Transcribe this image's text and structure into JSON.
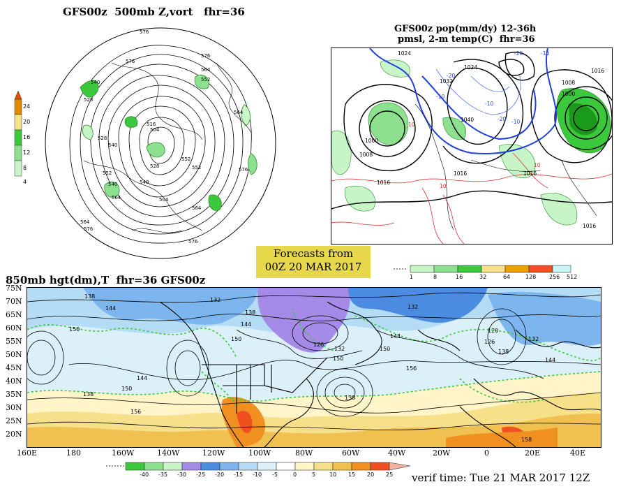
{
  "top_left": {
    "title": "GFS00z  500mb Z,vort   fhr=36",
    "colorbar": {
      "labels": [
        "24",
        "20",
        "16",
        "12",
        "8",
        "4"
      ],
      "colors": [
        "#e4ff00",
        "#f0a000",
        "#f7e08a",
        "#8de08d",
        "#3cc83c",
        "#c8f5c8"
      ]
    },
    "contour_labels": [
      "576",
      "576",
      "564",
      "564",
      "552",
      "540",
      "528",
      "540",
      "516",
      "504",
      "552",
      "564",
      "576",
      "528",
      "540",
      "552",
      "564",
      "576",
      "504",
      "576",
      "564",
      "528",
      "552",
      "540",
      "576"
    ]
  },
  "top_right": {
    "title_line1": "GFS00z pop(mm/dy) 12-36h",
    "title_line2": "pmsl, 2-m temp(C)  fhr=36",
    "pressure_labels": [
      "1024",
      "1024",
      "1016",
      "1032",
      "1000",
      "1040",
      "1016",
      "1008",
      "1016",
      "1016",
      "1016",
      "1000",
      "1008"
    ],
    "temp_labels": [
      "-20",
      "-10",
      "-10",
      "-20",
      "-10",
      "-20",
      "10",
      "10",
      "-30",
      "-10"
    ],
    "colorbar": {
      "labels": [
        "1",
        "8",
        "16",
        "32",
        "64",
        "128",
        "256",
        "512"
      ],
      "colors": [
        "#c8f5c8",
        "#8de08d",
        "#3cc83c",
        "#f7e08a",
        "#f0a000",
        "#f05020",
        "#c8f5f5"
      ]
    }
  },
  "forecast_box": {
    "line1": "Forecasts from",
    "line2": "00Z 20 MAR 2017"
  },
  "bottom": {
    "title": "850mb hgt(dm),T  fhr=36 GFS00z",
    "lat_labels": [
      "75N",
      "70N",
      "65N",
      "60N",
      "55N",
      "50N",
      "45N",
      "40N",
      "35N",
      "30N",
      "25N",
      "20N"
    ],
    "lon_labels": [
      "160E",
      "180",
      "160W",
      "140W",
      "120W",
      "100W",
      "80W",
      "60W",
      "40W",
      "20W",
      "0",
      "20E",
      "40E"
    ],
    "height_labels": [
      "138",
      "144",
      "132",
      "138",
      "144",
      "150",
      "132",
      "150",
      "144",
      "156",
      "138",
      "150",
      "144",
      "156",
      "138",
      "120",
      "126",
      "132",
      "138",
      "126",
      "132",
      "150",
      "144",
      "150",
      "158"
    ],
    "colorbar": {
      "labels": [
        "-40",
        "-35",
        "-30",
        "-25",
        "-20",
        "-15",
        "-10",
        "-5",
        "0",
        "5",
        "10",
        "15",
        "20",
        "25"
      ],
      "colors": [
        "#3cc83c",
        "#8de08d",
        "#c8f5c8",
        "#a58ae8",
        "#4c8ce0",
        "#7db6ee",
        "#b4dcf5",
        "#dcf0fa",
        "#ffffff",
        "#fff5c8",
        "#f7e08a",
        "#f0c050",
        "#f09020",
        "#f05020",
        "#f7b0a0"
      ]
    },
    "verif_time": "verif time: Tue 21 MAR 2017 12Z"
  }
}
